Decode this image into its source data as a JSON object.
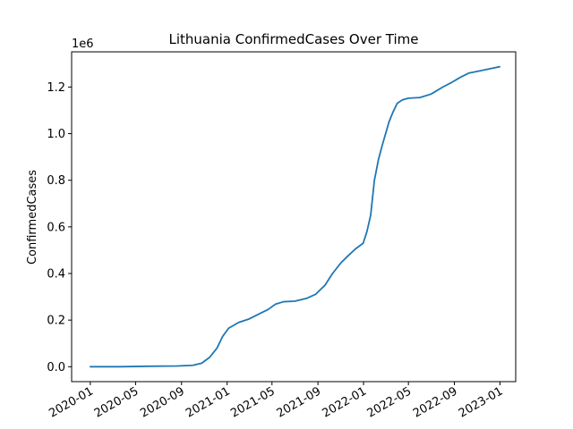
{
  "chart_data": {
    "type": "line",
    "title": "Lithuania  ConfirmedCases Over Time",
    "xlabel": "",
    "ylabel": "ConfirmedCases",
    "y_offset_label": "1e6",
    "ylim": [
      -0.064,
      1.351
    ],
    "xlim": [
      "2019-11-12",
      "2023-02-12"
    ],
    "x_ticks": [
      "2020-01",
      "2020-05",
      "2020-09",
      "2021-01",
      "2021-05",
      "2021-09",
      "2022-01",
      "2022-05",
      "2022-09",
      "2023-01"
    ],
    "y_ticks": [
      0.0,
      0.2,
      0.4,
      0.6,
      0.8,
      1.0,
      1.2
    ],
    "y_tick_labels": [
      "0.0",
      "0.2",
      "0.4",
      "0.6",
      "0.8",
      "1.0",
      "1.2"
    ],
    "grid": false,
    "line_color": "#1f77b4",
    "series": [
      {
        "x": [
          "2020-01-01",
          "2020-03-20",
          "2020-06-01",
          "2020-08-20",
          "2020-10-01",
          "2020-10-25",
          "2020-11-15",
          "2020-12-05",
          "2020-12-20",
          "2021-01-05",
          "2021-02-01",
          "2021-03-01",
          "2021-04-01",
          "2021-04-20",
          "2021-05-10",
          "2021-06-01",
          "2021-07-01",
          "2021-08-01",
          "2021-08-25",
          "2021-09-20",
          "2021-10-10",
          "2021-11-01",
          "2021-11-20",
          "2021-12-10",
          "2021-12-31",
          "2022-01-10",
          "2022-01-20",
          "2022-01-30",
          "2022-02-10",
          "2022-02-20",
          "2022-03-01",
          "2022-03-10",
          "2022-03-20",
          "2022-04-01",
          "2022-04-15",
          "2022-05-01",
          "2022-06-01",
          "2022-07-01",
          "2022-08-01",
          "2022-08-25",
          "2022-09-15",
          "2022-10-10",
          "2022-11-10",
          "2022-12-10",
          "2022-12-31"
        ],
        "y": [
          0.0,
          0.0,
          0.002,
          0.003,
          0.006,
          0.015,
          0.04,
          0.08,
          0.13,
          0.165,
          0.19,
          0.205,
          0.23,
          0.245,
          0.268,
          0.279,
          0.281,
          0.293,
          0.31,
          0.35,
          0.4,
          0.445,
          0.475,
          0.505,
          0.53,
          0.58,
          0.65,
          0.8,
          0.89,
          0.95,
          1.0,
          1.05,
          1.09,
          1.13,
          1.145,
          1.152,
          1.155,
          1.17,
          1.2,
          1.22,
          1.24,
          1.26,
          1.27,
          1.28,
          1.287
        ]
      }
    ]
  }
}
